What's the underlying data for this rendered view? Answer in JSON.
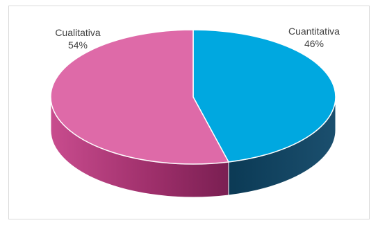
{
  "chart_data": {
    "type": "pie",
    "style": "3d",
    "title": "",
    "slices": [
      {
        "label": "Cualitativa",
        "value": 54,
        "display": "54%",
        "color": "#de6aa8"
      },
      {
        "label": "Cuantitativa",
        "value": 46,
        "display": "46%",
        "color": "#00a8e0"
      }
    ],
    "legend": "none",
    "data_labels": "outside"
  }
}
